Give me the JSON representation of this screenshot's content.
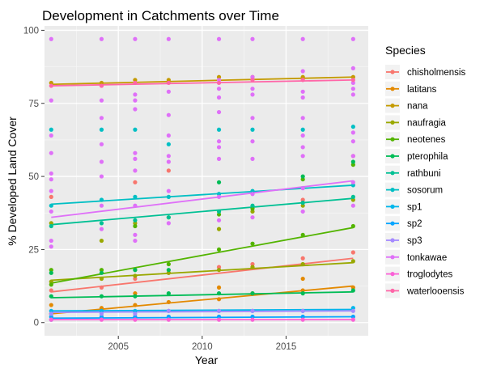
{
  "chart_data": {
    "type": "scatter",
    "title": "Development in Catchments over Time",
    "xlabel": "Year",
    "ylabel": "% Developed Land Cover",
    "xlim": [
      2000.6,
      2019.9
    ],
    "ylim": [
      -4.5,
      101.5
    ],
    "x_ticks": [
      2005,
      2010,
      2015
    ],
    "x_tick_labels": [
      "2005",
      "2010",
      "2015"
    ],
    "y_ticks": [
      0,
      25,
      50,
      75,
      100
    ],
    "y_tick_labels": [
      "0",
      "25",
      "50",
      "75",
      "100"
    ],
    "grid": true,
    "legend": {
      "title": "Species",
      "placement": "right"
    },
    "series": [
      {
        "name": "chisholmensis",
        "color": "#F8766D",
        "trend": [
          [
            2001,
            10.5
          ],
          [
            2019,
            22.0
          ]
        ],
        "points": [
          [
            2001,
            11
          ],
          [
            2001,
            43
          ],
          [
            2004,
            12
          ],
          [
            2006,
            15
          ],
          [
            2006,
            48
          ],
          [
            2008,
            17
          ],
          [
            2008,
            52
          ],
          [
            2011,
            19
          ],
          [
            2013,
            20
          ],
          [
            2016,
            22
          ],
          [
            2016,
            42
          ],
          [
            2019,
            24
          ],
          [
            2019,
            57
          ]
        ]
      },
      {
        "name": "latitans",
        "color": "#E38900",
        "trend": [
          [
            2001,
            3.0
          ],
          [
            2019,
            12.5
          ]
        ],
        "points": [
          [
            2001,
            3
          ],
          [
            2001,
            6
          ],
          [
            2004,
            5
          ],
          [
            2006,
            6
          ],
          [
            2006,
            10
          ],
          [
            2008,
            7
          ],
          [
            2011,
            8
          ],
          [
            2011,
            12
          ],
          [
            2013,
            10
          ],
          [
            2016,
            11
          ],
          [
            2016,
            15
          ],
          [
            2019,
            12
          ]
        ]
      },
      {
        "name": "nana",
        "color": "#C49A00",
        "trend": [
          [
            2001,
            81.5
          ],
          [
            2019,
            84.0
          ]
        ],
        "points": [
          [
            2001,
            82
          ],
          [
            2004,
            82
          ],
          [
            2006,
            83
          ],
          [
            2008,
            83
          ],
          [
            2011,
            84
          ],
          [
            2013,
            84
          ],
          [
            2016,
            84
          ],
          [
            2019,
            84
          ]
        ]
      },
      {
        "name": "naufragia",
        "color": "#99A800",
        "trend": [
          [
            2001,
            14.5
          ],
          [
            2019,
            20.5
          ]
        ],
        "points": [
          [
            2001,
            14
          ],
          [
            2001,
            34
          ],
          [
            2004,
            15
          ],
          [
            2004,
            28
          ],
          [
            2006,
            16
          ],
          [
            2006,
            34
          ],
          [
            2008,
            17
          ],
          [
            2008,
            36
          ],
          [
            2011,
            18
          ],
          [
            2011,
            32
          ],
          [
            2013,
            19
          ],
          [
            2013,
            38
          ],
          [
            2016,
            20
          ],
          [
            2016,
            40
          ],
          [
            2019,
            21
          ],
          [
            2019,
            42
          ]
        ]
      },
      {
        "name": "neotenes",
        "color": "#53B400",
        "trend": [
          [
            2001,
            13.5
          ],
          [
            2019,
            32.5
          ]
        ],
        "points": [
          [
            2001,
            18
          ],
          [
            2001,
            13
          ],
          [
            2004,
            18
          ],
          [
            2006,
            18
          ],
          [
            2006,
            33
          ],
          [
            2008,
            20
          ],
          [
            2011,
            25
          ],
          [
            2011,
            37
          ],
          [
            2013,
            27
          ],
          [
            2013,
            39
          ],
          [
            2016,
            30
          ],
          [
            2016,
            49
          ],
          [
            2019,
            33
          ],
          [
            2019,
            54
          ]
        ]
      },
      {
        "name": "pterophila",
        "color": "#00BC56",
        "trend": [
          [
            2001,
            8.5
          ],
          [
            2019,
            10.5
          ]
        ],
        "points": [
          [
            2001,
            9
          ],
          [
            2001,
            17
          ],
          [
            2004,
            9
          ],
          [
            2004,
            17
          ],
          [
            2006,
            9
          ],
          [
            2006,
            18
          ],
          [
            2008,
            10
          ],
          [
            2008,
            18
          ],
          [
            2011,
            10
          ],
          [
            2011,
            48
          ],
          [
            2013,
            10
          ],
          [
            2016,
            10
          ],
          [
            2016,
            50
          ],
          [
            2019,
            11
          ],
          [
            2019,
            55
          ]
        ]
      },
      {
        "name": "rathbuni",
        "color": "#00C094",
        "trend": [
          [
            2001,
            33.5
          ],
          [
            2019,
            42.5
          ]
        ],
        "points": [
          [
            2001,
            33
          ],
          [
            2004,
            34
          ],
          [
            2006,
            35
          ],
          [
            2008,
            36
          ],
          [
            2011,
            38
          ],
          [
            2013,
            40
          ],
          [
            2016,
            41
          ],
          [
            2019,
            43
          ]
        ]
      },
      {
        "name": "sosorum",
        "color": "#00BFC4",
        "trend": [
          [
            2001,
            40.5
          ],
          [
            2019,
            47.0
          ]
        ],
        "points": [
          [
            2001,
            40
          ],
          [
            2001,
            66
          ],
          [
            2004,
            42
          ],
          [
            2004,
            66
          ],
          [
            2006,
            43
          ],
          [
            2006,
            66
          ],
          [
            2008,
            43
          ],
          [
            2008,
            61
          ],
          [
            2011,
            44
          ],
          [
            2011,
            66
          ],
          [
            2013,
            45
          ],
          [
            2013,
            66
          ],
          [
            2016,
            46
          ],
          [
            2016,
            66
          ],
          [
            2019,
            47
          ],
          [
            2019,
            67
          ]
        ]
      },
      {
        "name": "sp1",
        "color": "#00B6EB",
        "trend": [
          [
            2001,
            4.0
          ],
          [
            2019,
            4.5
          ]
        ],
        "points": [
          [
            2001,
            4
          ],
          [
            2004,
            4
          ],
          [
            2006,
            4
          ],
          [
            2008,
            4
          ],
          [
            2011,
            4
          ],
          [
            2013,
            4
          ],
          [
            2016,
            4
          ],
          [
            2019,
            5
          ]
        ]
      },
      {
        "name": "sp2",
        "color": "#06A4FF",
        "trend": [
          [
            2001,
            1.5
          ],
          [
            2019,
            2.0
          ]
        ],
        "points": [
          [
            2001,
            1
          ],
          [
            2001,
            2
          ],
          [
            2004,
            2
          ],
          [
            2006,
            2
          ],
          [
            2008,
            2
          ],
          [
            2011,
            2
          ],
          [
            2013,
            2
          ],
          [
            2016,
            2
          ],
          [
            2019,
            2
          ]
        ]
      },
      {
        "name": "sp3",
        "color": "#A58AFF",
        "trend": [
          [
            2001,
            3.5
          ],
          [
            2019,
            4.0
          ]
        ],
        "points": [
          [
            2001,
            3
          ],
          [
            2004,
            3
          ],
          [
            2006,
            3
          ],
          [
            2008,
            4
          ],
          [
            2011,
            4
          ],
          [
            2013,
            4
          ],
          [
            2016,
            4
          ],
          [
            2019,
            4
          ]
        ]
      },
      {
        "name": "tonkawae",
        "color": "#DF70F8",
        "trend": [
          [
            2001,
            36.0
          ],
          [
            2019,
            48.5
          ]
        ],
        "points": [
          [
            2001,
            97
          ],
          [
            2001,
            76
          ],
          [
            2001,
            64
          ],
          [
            2001,
            58
          ],
          [
            2001,
            51
          ],
          [
            2001,
            49
          ],
          [
            2001,
            45
          ],
          [
            2001,
            38
          ],
          [
            2001,
            28
          ],
          [
            2001,
            26
          ],
          [
            2004,
            97
          ],
          [
            2004,
            76
          ],
          [
            2004,
            70
          ],
          [
            2004,
            61
          ],
          [
            2004,
            55
          ],
          [
            2004,
            50
          ],
          [
            2004,
            40
          ],
          [
            2004,
            32
          ],
          [
            2006,
            97
          ],
          [
            2006,
            78
          ],
          [
            2006,
            76
          ],
          [
            2006,
            73
          ],
          [
            2006,
            58
          ],
          [
            2006,
            56
          ],
          [
            2006,
            52
          ],
          [
            2006,
            40
          ],
          [
            2006,
            30
          ],
          [
            2006,
            28
          ],
          [
            2008,
            97
          ],
          [
            2008,
            79
          ],
          [
            2008,
            71
          ],
          [
            2008,
            64
          ],
          [
            2008,
            57
          ],
          [
            2008,
            55
          ],
          [
            2008,
            45
          ],
          [
            2008,
            34
          ],
          [
            2011,
            97
          ],
          [
            2011,
            83
          ],
          [
            2011,
            80
          ],
          [
            2011,
            77
          ],
          [
            2011,
            72
          ],
          [
            2011,
            62
          ],
          [
            2011,
            60
          ],
          [
            2011,
            56
          ],
          [
            2011,
            43
          ],
          [
            2011,
            35
          ],
          [
            2013,
            97
          ],
          [
            2013,
            84
          ],
          [
            2013,
            80
          ],
          [
            2013,
            78
          ],
          [
            2013,
            70
          ],
          [
            2013,
            62
          ],
          [
            2013,
            56
          ],
          [
            2013,
            44
          ],
          [
            2013,
            36
          ],
          [
            2016,
            97
          ],
          [
            2016,
            86
          ],
          [
            2016,
            79
          ],
          [
            2016,
            77
          ],
          [
            2016,
            70
          ],
          [
            2016,
            64
          ],
          [
            2016,
            60
          ],
          [
            2016,
            57
          ],
          [
            2016,
            46
          ],
          [
            2016,
            38
          ],
          [
            2019,
            97
          ],
          [
            2019,
            87
          ],
          [
            2019,
            82
          ],
          [
            2019,
            80
          ],
          [
            2019,
            78
          ],
          [
            2019,
            65
          ],
          [
            2019,
            62
          ],
          [
            2019,
            57
          ],
          [
            2019,
            48
          ],
          [
            2019,
            40
          ]
        ]
      },
      {
        "name": "troglodytes",
        "color": "#FB61D7",
        "trend": [
          [
            2001,
            1.0
          ],
          [
            2019,
            1.0
          ]
        ],
        "points": [
          [
            2001,
            1
          ],
          [
            2004,
            1
          ],
          [
            2006,
            1
          ],
          [
            2008,
            1
          ],
          [
            2011,
            1
          ],
          [
            2013,
            1
          ],
          [
            2016,
            1
          ],
          [
            2019,
            1
          ]
        ]
      },
      {
        "name": "waterlooensis",
        "color": "#FF66A8",
        "trend": [
          [
            2001,
            81.0
          ],
          [
            2019,
            83.0
          ]
        ],
        "points": [
          [
            2001,
            81
          ],
          [
            2004,
            81
          ],
          [
            2006,
            82
          ],
          [
            2008,
            82
          ],
          [
            2011,
            82
          ],
          [
            2013,
            83
          ],
          [
            2016,
            83
          ],
          [
            2019,
            83
          ]
        ]
      }
    ]
  }
}
